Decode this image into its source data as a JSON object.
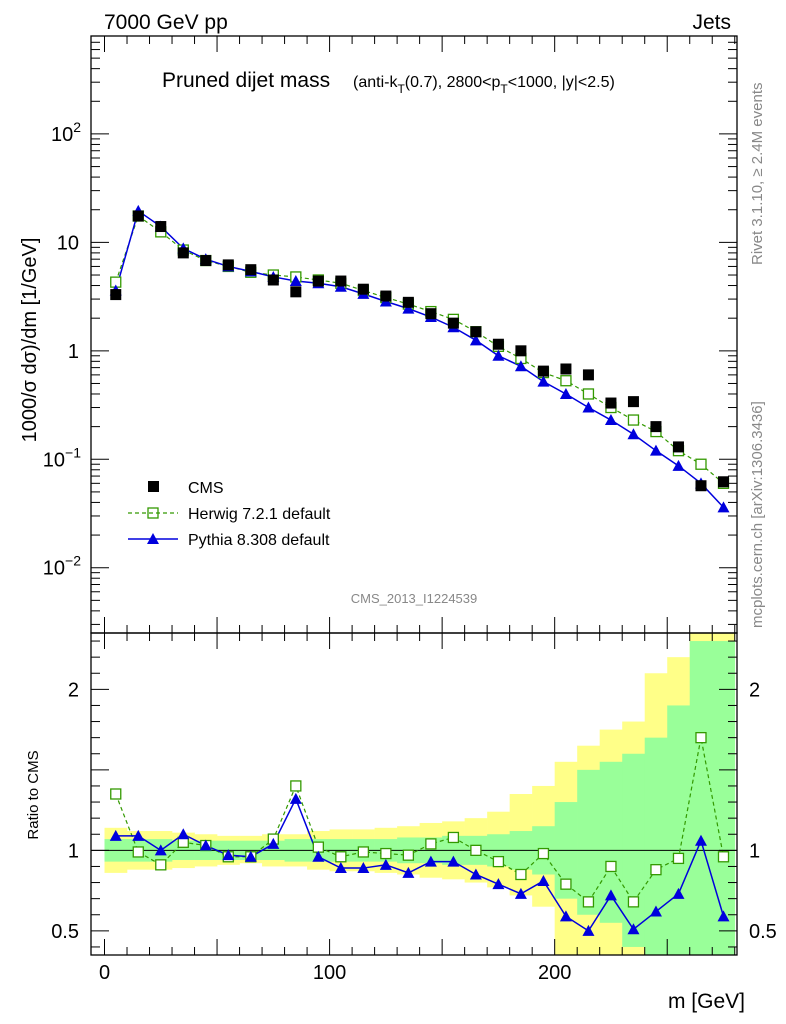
{
  "header": {
    "left": "7000 GeV pp",
    "right": "Jets"
  },
  "side": {
    "rivet": "Rivet 3.1.10, ≥ 2.4M events",
    "mcplots": "mcplots.cern.ch [arXiv:1306.3436]"
  },
  "chart_data": [
    {
      "type": "scatter",
      "panel": "main",
      "title": "Pruned dijet mass",
      "subtitle_parts": [
        "(anti-k",
        "T",
        "(0.7), 2800<p",
        "T",
        "<1000, |y|<2.5)"
      ],
      "ylabel": "1000/σ dσ)/dm [1/GeV]",
      "yscale": "log",
      "ylim": [
        0.0025,
        800
      ],
      "xlim": [
        -6,
        281
      ],
      "y_tick_labels": [
        {
          "value": 0.01,
          "base": "10",
          "exp": "−2"
        },
        {
          "value": 0.1,
          "base": "10",
          "exp": "−1"
        },
        {
          "value": 1,
          "base": "1",
          "exp": ""
        },
        {
          "value": 10,
          "base": "10",
          "exp": ""
        },
        {
          "value": 100,
          "base": "10",
          "exp": "2"
        }
      ],
      "watermark": "CMS_2013_I1224539",
      "x": [
        5,
        15,
        25,
        35,
        45,
        55,
        65,
        75,
        85,
        95,
        105,
        115,
        125,
        135,
        145,
        155,
        165,
        175,
        185,
        195,
        205,
        215,
        225,
        235,
        245,
        255,
        265,
        275
      ],
      "series": [
        {
          "name": "CMS",
          "color": "#000000",
          "marker": "filled-square",
          "values": [
            3.3,
            17.5,
            14,
            8.0,
            6.8,
            6.2,
            5.6,
            4.5,
            3.5,
            4.4,
            4.4,
            3.7,
            3.2,
            2.8,
            2.2,
            1.8,
            1.5,
            1.15,
            1.0,
            0.65,
            0.68,
            0.6,
            0.33,
            0.34,
            0.2,
            0.13,
            0.057,
            0.062
          ]
        },
        {
          "name": "Herwig 7.2.1 default",
          "color": "#339900",
          "marker": "open-square",
          "line": "dashed",
          "values": [
            4.3,
            17.5,
            12.5,
            8.5,
            6.8,
            6.0,
            5.3,
            5.0,
            4.8,
            4.5,
            4.2,
            3.6,
            3.1,
            2.7,
            2.3,
            1.95,
            1.5,
            1.1,
            0.85,
            0.63,
            0.53,
            0.4,
            0.3,
            0.23,
            0.18,
            0.12,
            0.09,
            0.06
          ]
        },
        {
          "name": "Pythia 8.308 default",
          "color": "#0000dd",
          "marker": "filled-triangle",
          "line": "solid",
          "values": [
            3.6,
            19.5,
            14.0,
            8.8,
            7.0,
            6.0,
            5.4,
            4.8,
            4.4,
            4.2,
            3.9,
            3.35,
            2.85,
            2.45,
            2.05,
            1.65,
            1.25,
            0.9,
            0.72,
            0.52,
            0.4,
            0.3,
            0.23,
            0.17,
            0.12,
            0.087,
            0.06,
            0.036
          ]
        }
      ]
    },
    {
      "type": "scatter",
      "panel": "ratio",
      "ylabel": "Ratio to CMS",
      "xlabel": "m [GeV]",
      "ylim": [
        0.35,
        2.35
      ],
      "xlim": [
        -6,
        281
      ],
      "x_tick_labels": [
        {
          "value": 0,
          "label": "0"
        },
        {
          "value": 100,
          "label": "100"
        },
        {
          "value": 200,
          "label": "200"
        }
      ],
      "y_tick_labels": [
        {
          "value": 0.5,
          "label": "0.5"
        },
        {
          "value": 1,
          "label": "1"
        },
        {
          "value": 2,
          "label": "2"
        }
      ],
      "x": [
        5,
        15,
        25,
        35,
        45,
        55,
        65,
        75,
        85,
        95,
        105,
        115,
        125,
        135,
        145,
        155,
        165,
        175,
        185,
        195,
        205,
        215,
        225,
        235,
        245,
        255,
        265,
        275
      ],
      "bands": {
        "green": {
          "lo": [
            0.93,
            0.93,
            0.93,
            0.94,
            0.94,
            0.94,
            0.94,
            0.94,
            0.93,
            0.93,
            0.93,
            0.93,
            0.93,
            0.92,
            0.92,
            0.91,
            0.91,
            0.9,
            0.88,
            0.85,
            0.7,
            0.6,
            0.55,
            0.4,
            0.35,
            0.3,
            0.35,
            0.35
          ],
          "hi": [
            1.07,
            1.07,
            1.07,
            1.06,
            1.06,
            1.06,
            1.06,
            1.06,
            1.07,
            1.07,
            1.07,
            1.07,
            1.07,
            1.08,
            1.08,
            1.09,
            1.09,
            1.1,
            1.12,
            1.15,
            1.3,
            1.5,
            1.55,
            1.6,
            1.7,
            1.9,
            2.3,
            2.3
          ]
        },
        "yellow": {
          "lo": [
            0.86,
            0.88,
            0.88,
            0.89,
            0.9,
            0.91,
            0.92,
            0.9,
            0.9,
            0.88,
            0.87,
            0.87,
            0.86,
            0.85,
            0.83,
            0.82,
            0.8,
            0.77,
            0.72,
            0.65,
            0.35,
            0.35,
            0.35,
            0.35,
            0.35,
            0.35,
            0.35,
            0.35
          ],
          "hi": [
            1.14,
            1.12,
            1.12,
            1.11,
            1.1,
            1.09,
            1.09,
            1.1,
            1.1,
            1.12,
            1.13,
            1.13,
            1.14,
            1.15,
            1.17,
            1.18,
            1.2,
            1.24,
            1.35,
            1.4,
            1.55,
            1.65,
            1.75,
            1.8,
            2.1,
            2.2,
            2.35,
            2.35
          ]
        }
      },
      "series": [
        {
          "name": "Herwig 7.2.1 default",
          "color": "#339900",
          "marker": "open-square",
          "line": "dashed",
          "values": [
            1.35,
            0.99,
            0.91,
            1.05,
            1.03,
            0.96,
            0.96,
            1.07,
            1.4,
            1.02,
            0.96,
            0.99,
            0.98,
            0.97,
            1.04,
            1.08,
            1.0,
            0.93,
            0.85,
            0.98,
            0.79,
            0.68,
            0.9,
            0.68,
            0.88,
            0.95,
            1.7,
            0.96
          ]
        },
        {
          "name": "Pythia 8.308 default",
          "color": "#0000dd",
          "marker": "filled-triangle",
          "line": "solid",
          "values": [
            1.09,
            1.09,
            1.0,
            1.1,
            1.03,
            0.97,
            0.96,
            1.04,
            1.32,
            0.96,
            0.89,
            0.89,
            0.91,
            0.86,
            0.93,
            0.93,
            0.85,
            0.79,
            0.73,
            0.81,
            0.59,
            0.5,
            0.72,
            0.51,
            0.62,
            0.73,
            1.06,
            0.59
          ]
        }
      ]
    }
  ],
  "legend": [
    {
      "label": "CMS"
    },
    {
      "label": "Herwig 7.2.1 default"
    },
    {
      "label": "Pythia 8.308 default"
    }
  ]
}
